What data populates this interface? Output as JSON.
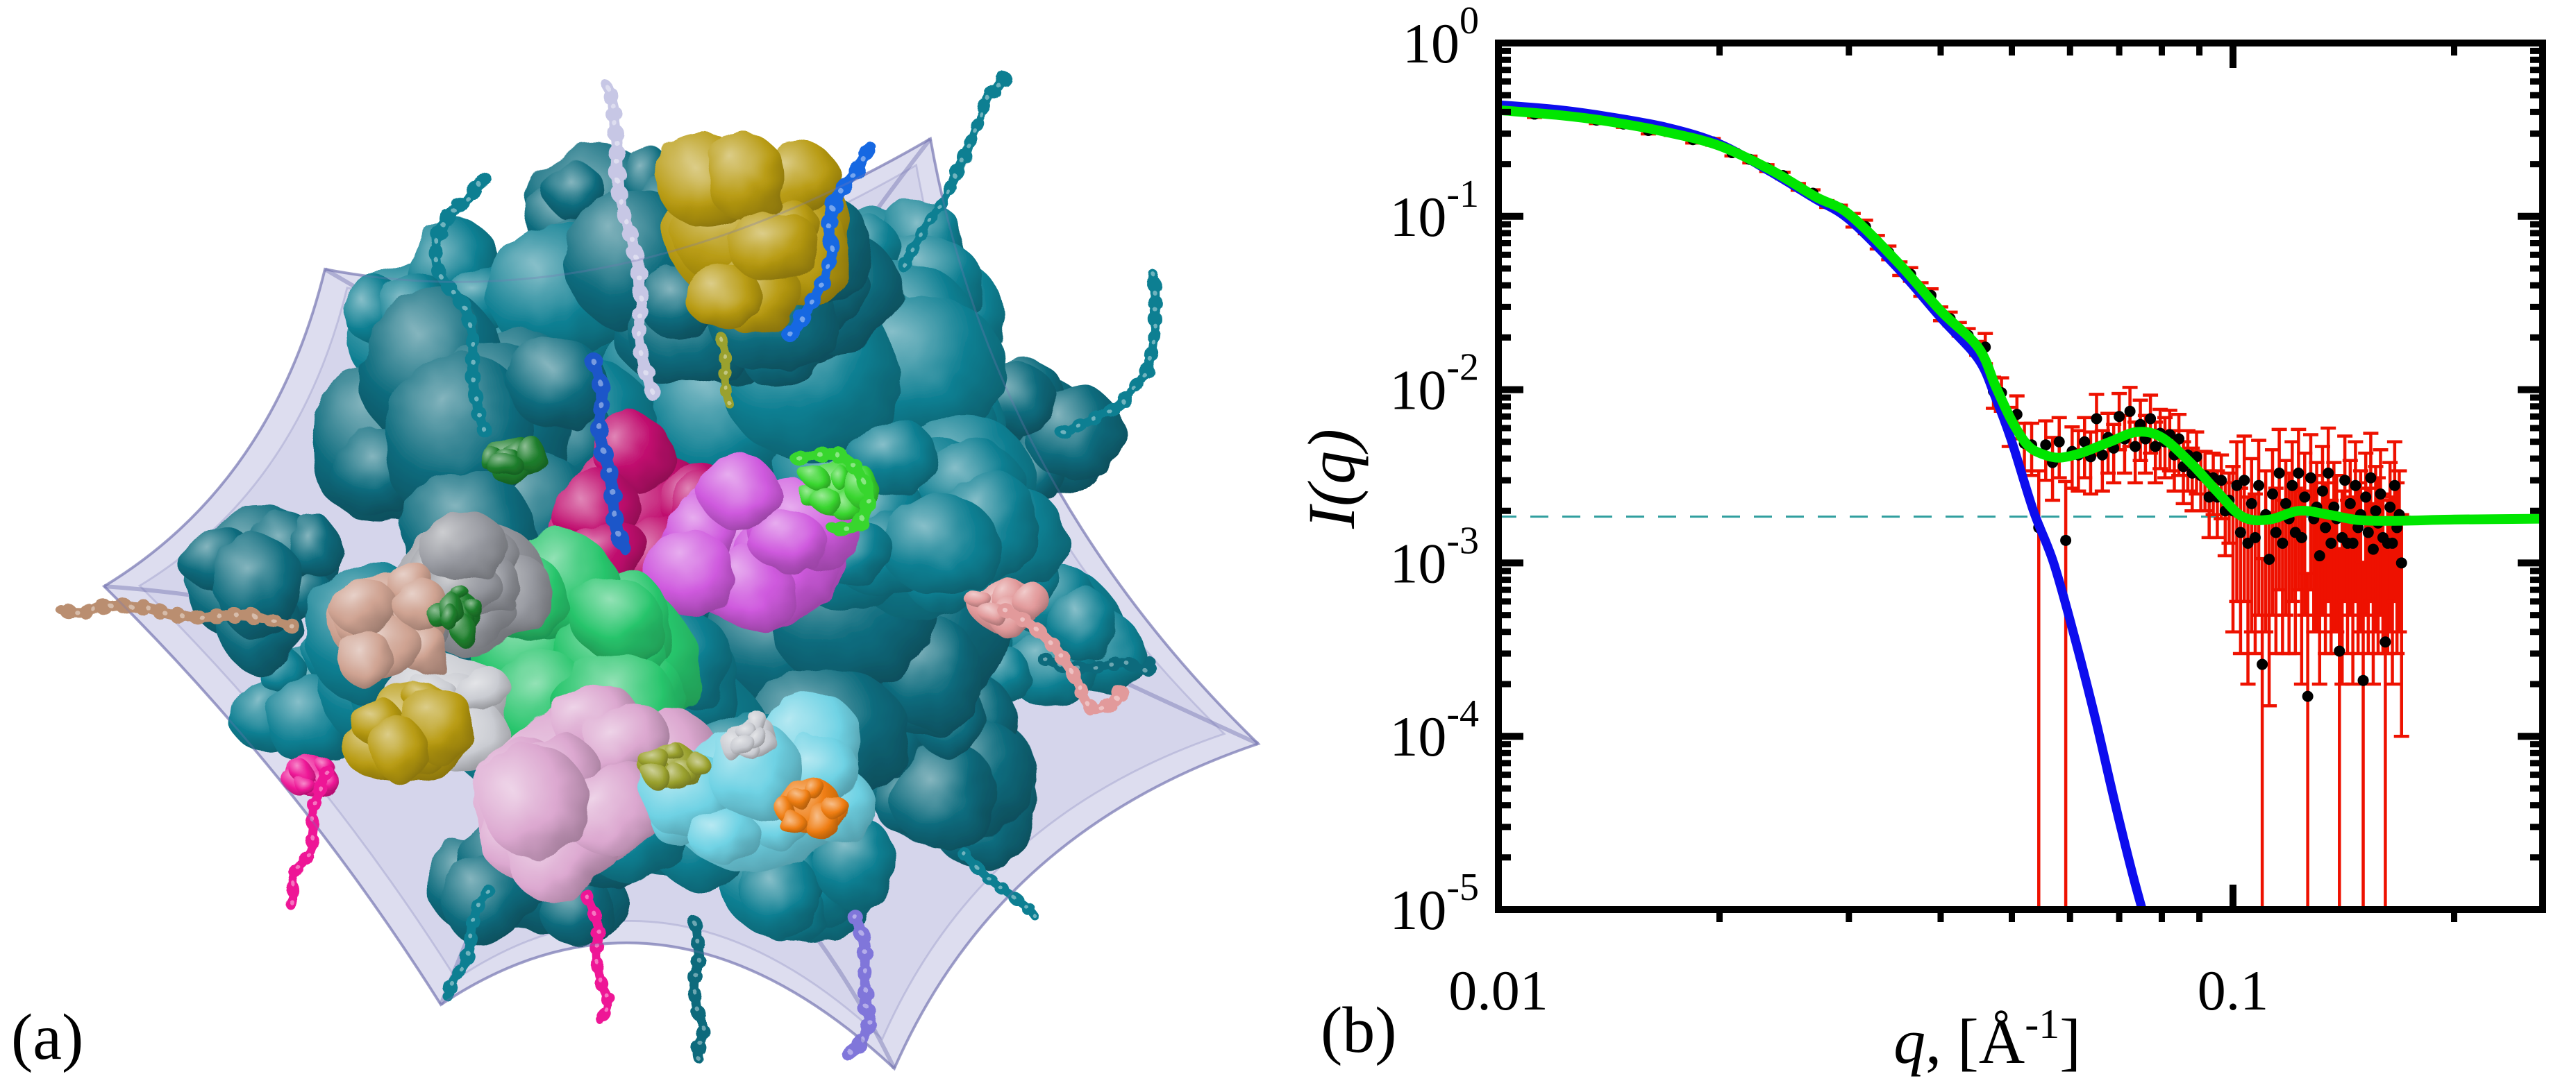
{
  "figure": {
    "panel_a": {
      "label": "(a)",
      "description": "Surface rendering of a multi-subunit protein complex with flexible bead-chain termini, shown inside a translucent lavender ab-initio envelope",
      "palette": {
        "teal": "#0e7f92",
        "teal_dark": "#0a6a7c",
        "teal_light": "#19a0b0",
        "cyan_light": "#6fd2e4",
        "spring_green": "#28c56c",
        "lime_green": "#39d62f",
        "dark_green": "#1e7e2c",
        "crimson": "#c00d6e",
        "violet": "#cf5ade",
        "plum": "#dcा8d0",
        "plum_fix": "#dca8d0",
        "hot_pink": "#ee1696",
        "gray": "#989aa1",
        "silver": "#c9cbd1",
        "lavender_chain": "#c7c7e5",
        "royal_blue": "#1d57c9",
        "bright_blue": "#1768e2",
        "khaki": "#b89b12",
        "olive": "#9aa12e",
        "orange": "#ef7d12",
        "salmon": "#e29a9b",
        "tan": "#ba8e6f",
        "pink_tan": "#cfa392",
        "purple": "#8076da",
        "envelope_fill": "rgba(151,151,206,0.33)",
        "envelope_edge": "rgba(108,108,172,0.55)"
      }
    },
    "panel_b": {
      "label": "(b)",
      "x_axis": {
        "label_q": "q",
        "label_mid": ", [Å",
        "label_sup": "-1",
        "label_end": "]",
        "tick_labels": [
          "0.01",
          "0.1"
        ],
        "tick_values": [
          0.01,
          0.1
        ],
        "minor_ticks": [
          0.02,
          0.03,
          0.04,
          0.05,
          0.06,
          0.07,
          0.08,
          0.09,
          0.2
        ],
        "min": 0.01,
        "max": 0.264,
        "scale": "log"
      },
      "y_axis": {
        "label": "I(q)",
        "base": "10",
        "tick_exponents": [
          0,
          -1,
          -2,
          -3,
          -4,
          -5
        ],
        "min": 1e-05,
        "max": 1,
        "scale": "log"
      }
    }
  },
  "chart_data": {
    "type": "scatter",
    "title": "",
    "xlabel": "q, [Å⁻¹]",
    "ylabel": "I(q)",
    "xscale": "log",
    "yscale": "log",
    "xlim": [
      0.01,
      0.264
    ],
    "ylim": [
      1e-05,
      1
    ],
    "grid": false,
    "legend": "none",
    "colors": {
      "data_marker": "#000000",
      "error_bar": "#ee1100",
      "fit_blue": "#0d0dee",
      "fit_green": "#00e600",
      "baseline_dashed": "#2f9e9e",
      "axis": "#000000"
    },
    "baseline": {
      "style": "dashed",
      "value": 0.00185
    },
    "series": [
      {
        "name": "fit-blue-compact-model",
        "type": "line",
        "color": "#0d0dee",
        "points": [
          [
            0.01,
            0.44
          ],
          [
            0.012,
            0.413
          ],
          [
            0.014,
            0.378
          ],
          [
            0.017,
            0.325
          ],
          [
            0.02,
            0.262
          ],
          [
            0.0235,
            0.18
          ],
          [
            0.027,
            0.126
          ],
          [
            0.03,
            0.096
          ],
          [
            0.035,
            0.05
          ],
          [
            0.04,
            0.026
          ],
          [
            0.045,
            0.015
          ],
          [
            0.0475,
            0.009
          ],
          [
            0.05,
            0.005
          ],
          [
            0.0535,
            0.002
          ],
          [
            0.057,
            0.001
          ],
          [
            0.061,
            0.00036
          ],
          [
            0.065,
            0.000125
          ],
          [
            0.069,
            4.2e-05
          ],
          [
            0.073,
            1.6e-05
          ],
          [
            0.0765,
            7.8e-06
          ]
        ]
      },
      {
        "name": "fit-green-with-background",
        "type": "line",
        "color": "#00e600",
        "points": [
          [
            0.01,
            0.41
          ],
          [
            0.012,
            0.385
          ],
          [
            0.014,
            0.355
          ],
          [
            0.017,
            0.305
          ],
          [
            0.02,
            0.255
          ],
          [
            0.0235,
            0.185
          ],
          [
            0.027,
            0.13
          ],
          [
            0.03,
            0.103
          ],
          [
            0.035,
            0.054
          ],
          [
            0.04,
            0.0285
          ],
          [
            0.045,
            0.0175
          ],
          [
            0.0475,
            0.0105
          ],
          [
            0.05,
            0.0066
          ],
          [
            0.0525,
            0.0048
          ],
          [
            0.055,
            0.00425
          ],
          [
            0.058,
            0.00405
          ],
          [
            0.062,
            0.0043
          ],
          [
            0.068,
            0.005
          ],
          [
            0.074,
            0.0057
          ],
          [
            0.08,
            0.0053
          ],
          [
            0.088,
            0.0037
          ],
          [
            0.095,
            0.0026
          ],
          [
            0.103,
            0.00185
          ],
          [
            0.112,
            0.00178
          ],
          [
            0.123,
            0.002
          ],
          [
            0.135,
            0.0019
          ],
          [
            0.148,
            0.00177
          ],
          [
            0.165,
            0.00175
          ],
          [
            0.2,
            0.00178
          ],
          [
            0.264,
            0.0018
          ]
        ]
      },
      {
        "name": "experimental-saxs-data",
        "type": "scatter_with_errors",
        "marker": "circle",
        "color": "#000000",
        "error_color": "#ee1100",
        "points": [
          [
            0.01,
            0.414,
            0.018
          ],
          [
            0.0112,
            0.389,
            0.017
          ],
          [
            0.0124,
            0.387,
            0.017
          ],
          [
            0.0136,
            0.359,
            0.016
          ],
          [
            0.0148,
            0.341,
            0.015
          ],
          [
            0.016,
            0.313,
            0.014
          ],
          [
            0.0172,
            0.306,
            0.013
          ],
          [
            0.0184,
            0.277,
            0.012
          ],
          [
            0.0196,
            0.269,
            0.012
          ],
          [
            0.0208,
            0.233,
            0.01
          ],
          [
            0.022,
            0.213,
            0.0095
          ],
          [
            0.0232,
            0.19,
            0.0085
          ],
          [
            0.0244,
            0.172,
            0.0077
          ],
          [
            0.0256,
            0.148,
            0.0066
          ],
          [
            0.0268,
            0.136,
            0.0061
          ],
          [
            0.028,
            0.118,
            0.0053
          ],
          [
            0.0292,
            0.111,
            0.005
          ],
          [
            0.0304,
            0.0953,
            0.0086
          ],
          [
            0.0316,
            0.0872,
            0.0078
          ],
          [
            0.0328,
            0.0712,
            0.0064
          ],
          [
            0.034,
            0.0618,
            0.0056
          ],
          [
            0.0352,
            0.0501,
            0.0045
          ],
          [
            0.0364,
            0.0464,
            0.0042
          ],
          [
            0.0376,
            0.038,
            0.0034
          ],
          [
            0.0388,
            0.035,
            0.0032
          ],
          [
            0.04,
            0.0275,
            0.0025
          ],
          [
            0.0412,
            0.0257,
            0.0023
          ],
          [
            0.0424,
            0.0224,
            0.002
          ],
          [
            0.0436,
            0.0206,
            0.0019
          ],
          [
            0.0448,
            0.0174,
            0.0016
          ],
          [
            0.046,
            0.0176,
            0.0035
          ],
          [
            0.0472,
            0.0098,
            0.002
          ],
          [
            0.0484,
            0.0096,
            0.0021
          ],
          [
            0.0496,
            0.0063,
            0.0016
          ],
          [
            0.0508,
            0.0072,
            0.002
          ],
          [
            0.052,
            0.0049,
            0.0015
          ],
          [
            0.0532,
            0.0048,
            0.0016
          ],
          [
            0.0544,
            0.0016,
            0.0018
          ],
          [
            0.0556,
            0.0048,
            0.0018
          ],
          [
            0.0568,
            0.0038,
            0.0015
          ],
          [
            0.058,
            0.005,
            0.0019
          ],
          [
            0.0592,
            0.00135,
            0.0016
          ],
          [
            0.0604,
            0.0044,
            0.0017
          ],
          [
            0.0616,
            0.0042,
            0.0016
          ],
          [
            0.0628,
            0.005,
            0.0019
          ],
          [
            0.064,
            0.0041,
            0.0016
          ],
          [
            0.0652,
            0.0068,
            0.0026
          ],
          [
            0.0664,
            0.0042,
            0.0016
          ],
          [
            0.0676,
            0.0053,
            0.002
          ],
          [
            0.0688,
            0.0046,
            0.0017
          ],
          [
            0.07,
            0.007,
            0.0025
          ],
          [
            0.0712,
            0.0052,
            0.0019
          ],
          [
            0.0724,
            0.0075,
            0.0028
          ],
          [
            0.0736,
            0.0047,
            0.0018
          ],
          [
            0.0748,
            0.0063,
            0.0024
          ],
          [
            0.076,
            0.0052,
            0.0019
          ],
          [
            0.0772,
            0.0068,
            0.0025
          ],
          [
            0.0784,
            0.0047,
            0.0018
          ],
          [
            0.0796,
            0.0056,
            0.0021
          ],
          [
            0.0808,
            0.005,
            0.0019
          ],
          [
            0.082,
            0.0055,
            0.0021
          ],
          [
            0.0832,
            0.0042,
            0.0016
          ],
          [
            0.0844,
            0.0052,
            0.002
          ],
          [
            0.0856,
            0.0036,
            0.0014
          ],
          [
            0.0868,
            0.0042,
            0.0016
          ],
          [
            0.088,
            0.0033,
            0.0013
          ],
          [
            0.0892,
            0.0041,
            0.0016
          ],
          [
            0.0904,
            0.0032,
            0.0012
          ],
          [
            0.0916,
            0.0032,
            0.0012
          ],
          [
            0.0928,
            0.0024,
            0.001
          ],
          [
            0.094,
            0.0031,
            0.0012
          ],
          [
            0.0952,
            0.0024,
            0.001
          ],
          [
            0.0964,
            0.003,
            0.0012
          ],
          [
            0.0976,
            0.002,
            0.0009
          ],
          [
            0.0988,
            0.0023,
            0.001
          ],
          [
            0.1,
            0.002,
            0.0016
          ],
          [
            0.1012,
            0.0028,
            0.0022
          ],
          [
            0.1024,
            0.0015,
            0.0012
          ],
          [
            0.1036,
            0.003,
            0.0024
          ],
          [
            0.1048,
            0.0013,
            0.0011
          ],
          [
            0.106,
            0.0022,
            0.0018
          ],
          [
            0.1072,
            0.0014,
            0.0011
          ],
          [
            0.1084,
            0.0028,
            0.0023
          ],
          [
            0.1096,
            0.00026,
            0.0008
          ],
          [
            0.1108,
            0.0019,
            0.0015
          ],
          [
            0.112,
            0.00105,
            0.0009
          ],
          [
            0.1132,
            0.0025,
            0.002
          ],
          [
            0.1144,
            0.0015,
            0.0012
          ],
          [
            0.1156,
            0.0033,
            0.0026
          ],
          [
            0.1168,
            0.0013,
            0.001
          ],
          [
            0.118,
            0.0022,
            0.0017
          ],
          [
            0.1192,
            0.0018,
            0.0015
          ],
          [
            0.1204,
            0.0028,
            0.0022
          ],
          [
            0.1216,
            0.0015,
            0.0012
          ],
          [
            0.1228,
            0.0033,
            0.0026
          ],
          [
            0.124,
            0.0014,
            0.0012
          ],
          [
            0.1252,
            0.0024,
            0.0019
          ],
          [
            0.1264,
            0.00017,
            0.0007
          ],
          [
            0.1276,
            0.0031,
            0.0024
          ],
          [
            0.1288,
            0.0018,
            0.0014
          ],
          [
            0.13,
            0.0021,
            0.0017
          ],
          [
            0.1312,
            0.0011,
            0.0009
          ],
          [
            0.1324,
            0.0026,
            0.0021
          ],
          [
            0.1336,
            0.0016,
            0.0013
          ],
          [
            0.1348,
            0.0033,
            0.0027
          ],
          [
            0.136,
            0.0013,
            0.001
          ],
          [
            0.1372,
            0.0021,
            0.0017
          ],
          [
            0.1384,
            0.0018,
            0.0014
          ],
          [
            0.1396,
            0.00031,
            0.0009
          ],
          [
            0.1408,
            0.0014,
            0.0012
          ],
          [
            0.142,
            0.003,
            0.0024
          ],
          [
            0.1432,
            0.0013,
            0.001
          ],
          [
            0.1444,
            0.0022,
            0.0017
          ],
          [
            0.1456,
            0.0013,
            0.0011
          ],
          [
            0.1468,
            0.0028,
            0.0022
          ],
          [
            0.148,
            0.0016,
            0.0013
          ],
          [
            0.1492,
            0.0019,
            0.0015
          ],
          [
            0.1504,
            0.00021,
            0.0008
          ],
          [
            0.1516,
            0.0024,
            0.0019
          ],
          [
            0.1528,
            0.0015,
            0.0012
          ],
          [
            0.154,
            0.0031,
            0.0025
          ],
          [
            0.1552,
            0.0012,
            0.001
          ],
          [
            0.1564,
            0.002,
            0.0016
          ],
          [
            0.1576,
            0.0017,
            0.0014
          ],
          [
            0.1588,
            0.0025,
            0.002
          ],
          [
            0.16,
            0.0014,
            0.0011
          ],
          [
            0.1612,
            0.00035,
            0.0009
          ],
          [
            0.1624,
            0.0013,
            0.001
          ],
          [
            0.1636,
            0.0021,
            0.0017
          ],
          [
            0.1648,
            0.0013,
            0.0011
          ],
          [
            0.166,
            0.0028,
            0.0022
          ],
          [
            0.1672,
            0.0016,
            0.0013
          ],
          [
            0.1684,
            0.0019,
            0.0015
          ],
          [
            0.1696,
            0.001,
            0.0009
          ]
        ]
      }
    ]
  }
}
